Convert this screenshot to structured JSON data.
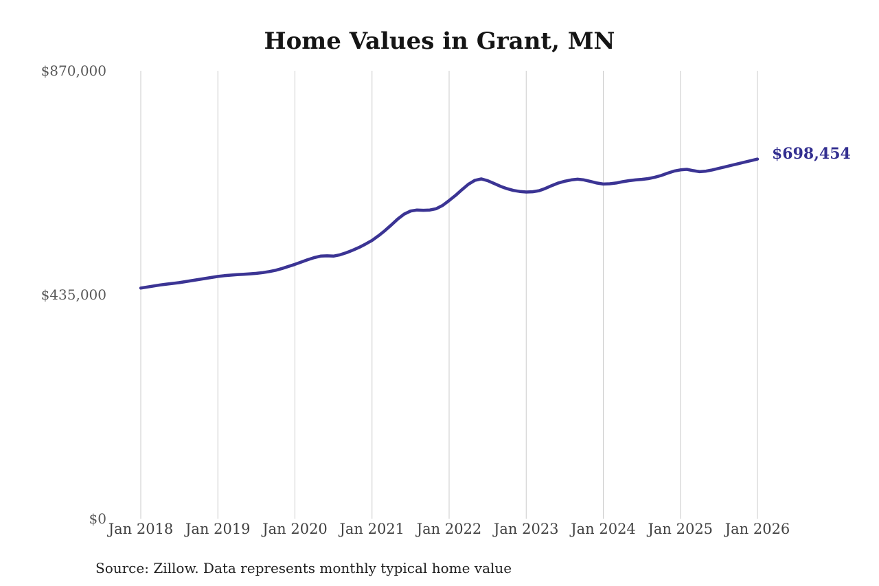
{
  "chart_data": {
    "type": "line",
    "title": "Home Values in Grant, MN",
    "xlabel": "",
    "ylabel": "",
    "ylim": [
      0,
      870000
    ],
    "grid": "vertical-only",
    "legend": "none",
    "end_label": "$698,454",
    "end_value": 698454,
    "source": "Source: Zillow. Data represents monthly typical home value",
    "x_tick_labels": [
      "Jan 2018",
      "Jan 2019",
      "Jan 2020",
      "Jan 2021",
      "Jan 2022",
      "Jan 2023",
      "Jan 2024",
      "Jan 2025",
      "Jan 2026"
    ],
    "y_ticks": [
      {
        "label": "$870,000",
        "value": 870000
      },
      {
        "label": "$435,000",
        "value": 435000
      },
      {
        "label": "$0",
        "value": 0
      }
    ],
    "colors": {
      "line": "#3b3494",
      "gridline": "#cbcbcb",
      "end_label": "#332f90",
      "title": "#151515",
      "axis_text": "#4a4a4a"
    },
    "series": [
      {
        "name": "Monthly typical home value",
        "color": "#3b3494",
        "months": [
          "2018-01",
          "2018-02",
          "2018-03",
          "2018-04",
          "2018-05",
          "2018-06",
          "2018-07",
          "2018-08",
          "2018-09",
          "2018-10",
          "2018-11",
          "2018-12",
          "2019-01",
          "2019-02",
          "2019-03",
          "2019-04",
          "2019-05",
          "2019-06",
          "2019-07",
          "2019-08",
          "2019-09",
          "2019-10",
          "2019-11",
          "2019-12",
          "2020-01",
          "2020-02",
          "2020-03",
          "2020-04",
          "2020-05",
          "2020-06",
          "2020-07",
          "2020-08",
          "2020-09",
          "2020-10",
          "2020-11",
          "2020-12",
          "2021-01",
          "2021-02",
          "2021-03",
          "2021-04",
          "2021-05",
          "2021-06",
          "2021-07",
          "2021-08",
          "2021-09",
          "2021-10",
          "2021-11",
          "2021-12",
          "2022-01",
          "2022-02",
          "2022-03",
          "2022-04",
          "2022-05",
          "2022-06",
          "2022-07",
          "2022-08",
          "2022-09",
          "2022-10",
          "2022-11",
          "2022-12",
          "2023-01",
          "2023-02",
          "2023-03",
          "2023-04",
          "2023-05",
          "2023-06",
          "2023-07",
          "2023-08",
          "2023-09",
          "2023-10",
          "2023-11",
          "2023-12",
          "2024-01",
          "2024-02",
          "2024-03",
          "2024-04",
          "2024-05",
          "2024-06",
          "2024-07",
          "2024-08",
          "2024-09",
          "2024-10",
          "2024-11",
          "2024-12",
          "2025-01",
          "2025-02",
          "2025-03",
          "2025-04",
          "2025-05",
          "2025-06",
          "2025-07",
          "2025-08",
          "2025-09",
          "2025-10",
          "2025-11",
          "2025-12",
          "2026-01"
        ],
        "values": [
          448000,
          450000,
          452000,
          454000,
          455500,
          457000,
          458500,
          460500,
          462500,
          464500,
          466500,
          468500,
          470500,
          472000,
          473000,
          474000,
          474800,
          475500,
          476500,
          478000,
          480000,
          482500,
          486000,
          490000,
          494000,
          498500,
          503000,
          507000,
          510000,
          510500,
          510000,
          512500,
          516500,
          521500,
          527000,
          533500,
          540500,
          549500,
          559500,
          570500,
          582000,
          591500,
          597500,
          599500,
          599000,
          599500,
          602000,
          608500,
          618000,
          628000,
          639000,
          649500,
          657000,
          660000,
          656500,
          651000,
          645500,
          641000,
          637500,
          635500,
          634500,
          635000,
          637000,
          641500,
          647000,
          652000,
          655500,
          658000,
          659500,
          658000,
          655000,
          652000,
          650000,
          650500,
          652000,
          654500,
          656500,
          658000,
          659000,
          660500,
          663000,
          666500,
          671000,
          675000,
          677500,
          678500,
          676000,
          674000,
          675000,
          677500,
          680500,
          683500,
          686500,
          689500,
          692500,
          695500,
          698454
        ]
      }
    ]
  }
}
